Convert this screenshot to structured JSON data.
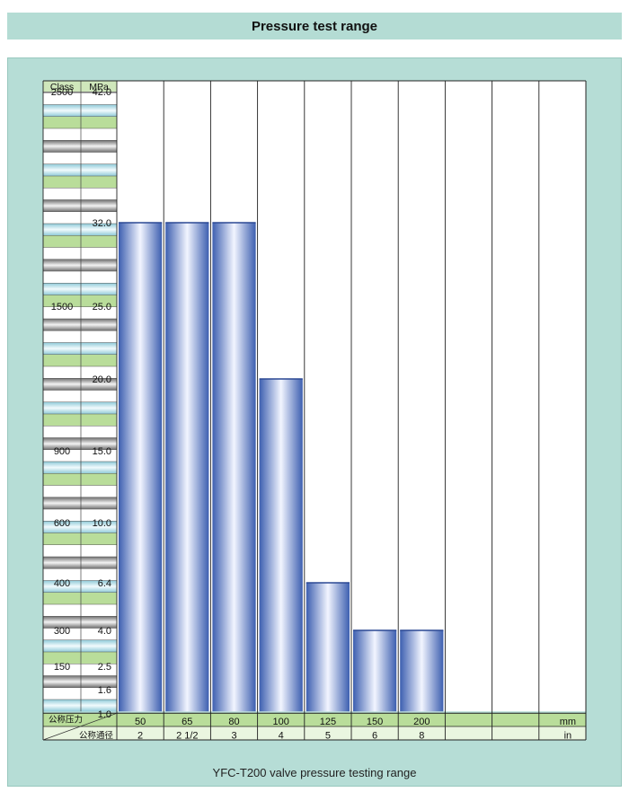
{
  "header": {
    "title": "Pressure test range"
  },
  "caption": "YFC-T200 valve pressure testing range",
  "chart_data": {
    "type": "bar",
    "axis_header": {
      "class": "Class",
      "mpa": "MPa"
    },
    "y_labels": [
      {
        "mpa": 42.0,
        "class": "2500",
        "label": "42.0"
      },
      {
        "mpa": 32.0,
        "class": "",
        "label": "32.0"
      },
      {
        "mpa": 25.0,
        "class": "1500",
        "label": "25.0"
      },
      {
        "mpa": 20.0,
        "class": "",
        "label": "20.0"
      },
      {
        "mpa": 15.0,
        "class": "900",
        "label": "15.0"
      },
      {
        "mpa": 10.0,
        "class": "600",
        "label": "10.0"
      },
      {
        "mpa": 6.4,
        "class": "400",
        "label": "6.4"
      },
      {
        "mpa": 4.0,
        "class": "300",
        "label": "4.0"
      },
      {
        "mpa": 2.5,
        "class": "150",
        "label": "2.5"
      },
      {
        "mpa": 1.6,
        "class": "",
        "label": "1.6"
      },
      {
        "mpa": 1.0,
        "class": "",
        "label": "1.0"
      }
    ],
    "categories_mm": [
      "50",
      "65",
      "80",
      "100",
      "125",
      "150",
      "200",
      "",
      "",
      ""
    ],
    "categories_in": [
      "2",
      "2 1/2",
      "3",
      "4",
      "5",
      "6",
      "8",
      "",
      "",
      ""
    ],
    "values": [
      32.0,
      32.0,
      32.0,
      20.0,
      6.4,
      4.0,
      4.0,
      null,
      null,
      null
    ],
    "row_labels": {
      "nominal_pressure": "公称压力",
      "nominal_diameter": "公称通径"
    },
    "units": {
      "mm": "mm",
      "in": "in"
    },
    "colors": {
      "bar_edge": "#3d5fb0",
      "bar_center": "#f2f5ff",
      "green": "#b9dd9a",
      "cyan": "#bfe4ec",
      "gray": "#8a8a8a"
    }
  }
}
